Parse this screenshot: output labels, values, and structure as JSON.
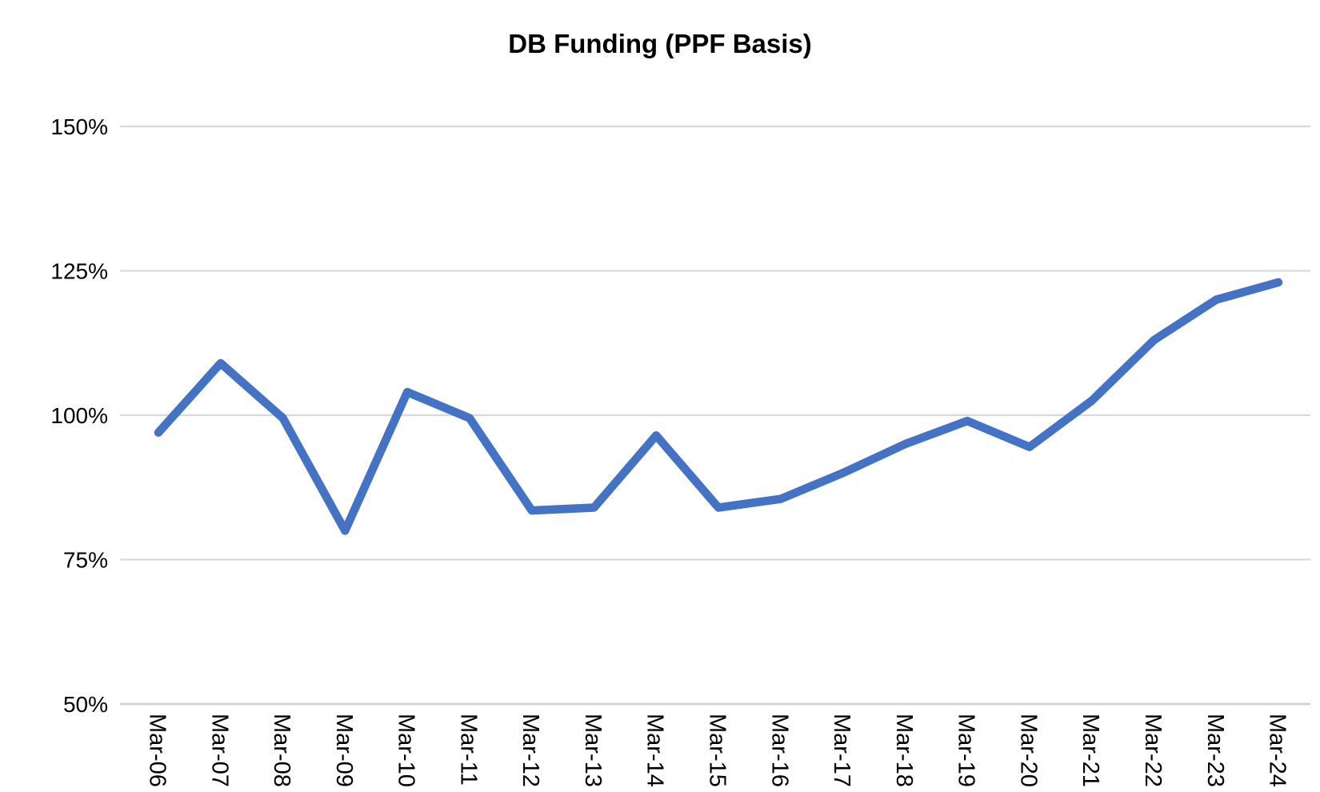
{
  "chart_data": {
    "type": "line",
    "title": "DB Funding (PPF Basis)",
    "categories": [
      "Mar-06",
      "Mar-07",
      "Mar-08",
      "Mar-09",
      "Mar-10",
      "Mar-11",
      "Mar-12",
      "Mar-13",
      "Mar-14",
      "Mar-15",
      "Mar-16",
      "Mar-17",
      "Mar-18",
      "Mar-19",
      "Mar-20",
      "Mar-21",
      "Mar-22",
      "Mar-23",
      "Mar-24"
    ],
    "series": [
      {
        "name": "DB Funding (PPF Basis)",
        "color": "#4472C4",
        "values": [
          97,
          109,
          99.5,
          80,
          104,
          99.5,
          83.5,
          84,
          96.5,
          84,
          85.5,
          90,
          95,
          99,
          94.5,
          102.5,
          113,
          120,
          123
        ]
      }
    ],
    "y_axis": {
      "min": 50,
      "max": 150,
      "step": 25,
      "suffix": "%",
      "tick_labels": [
        "150%",
        "125%",
        "100%",
        "75%",
        "50%"
      ]
    },
    "x_axis": {
      "label_rotation_deg": 90
    },
    "grid": true,
    "legend_position": "none",
    "colors": {
      "line": "#4472C4",
      "gridline": "#D9D9D9",
      "axis_line": "#D4D4D4",
      "text": "#000000",
      "background": "#FFFFFF"
    }
  }
}
